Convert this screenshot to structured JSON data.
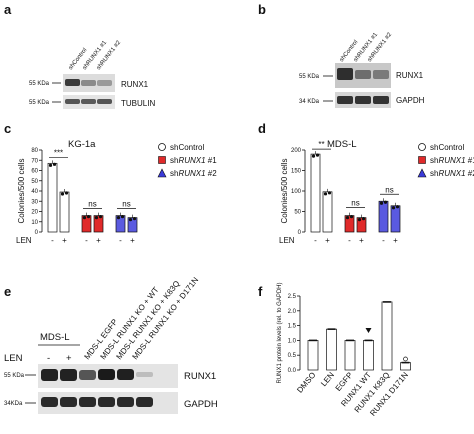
{
  "panels": {
    "a": {
      "letter": "a",
      "lanes": [
        "shControl",
        "shRUNX1 #1",
        "shRUNX1 #2"
      ],
      "markers": [
        "55 KDa",
        "55 KDa"
      ],
      "blots": [
        "RUNX1",
        "TUBULIN"
      ]
    },
    "b": {
      "letter": "b",
      "lanes": [
        "shControl",
        "shRUNX1 #1",
        "shRUNX1 #2"
      ],
      "markers": [
        "55 KDa",
        "34 KDa"
      ],
      "blots": [
        "RUNX1",
        "GAPDH"
      ]
    },
    "e": {
      "letter": "e",
      "group_label": "MDS-L",
      "len_label": "LEN",
      "len_signs": [
        "-",
        "+"
      ],
      "lanes": [
        "MDS-L EGFP",
        "MDS-L RUNX1 KO + WT",
        "MDS-L RUNX1 KO + K83Q",
        "MDS-L RUNX1 KO + D171N"
      ],
      "markers": [
        "55 KDa",
        "34KDa"
      ],
      "blots": [
        "RUNX1",
        "GAPDH"
      ]
    }
  },
  "chart_data": [
    {
      "panel": "c",
      "type": "bar",
      "title": "KG-1a",
      "ylabel": "Colonies/500 cells",
      "xlabel": "LEN",
      "ylim": [
        0,
        80
      ],
      "yticks": [
        "0",
        "10",
        "20",
        "30",
        "40",
        "50",
        "60",
        "70",
        "80"
      ],
      "groups": [
        "shControl",
        "shRUNX1 #1",
        "shRUNX1 #2"
      ],
      "len_signs": [
        "-",
        "+",
        "-",
        "+",
        "-",
        "+"
      ],
      "values": [
        67,
        39,
        16,
        16,
        16,
        14
      ],
      "colors": [
        "#ffffff",
        "#ffffff",
        "#e02a2a",
        "#e02a2a",
        "#5a5ae0",
        "#5a5ae0"
      ],
      "significance": [
        "***",
        "ns",
        "ns"
      ],
      "legend": [
        "shControl",
        "shRUNX1 #1",
        "shRUNX1 #2"
      ]
    },
    {
      "panel": "d",
      "type": "bar",
      "title": "MDS-L",
      "ylabel": "Colonies/500 cells",
      "xlabel": "LEN",
      "ylim": [
        0,
        200
      ],
      "yticks": [
        "0",
        "50",
        "100",
        "150",
        "200"
      ],
      "groups": [
        "shControl",
        "shRUNX1 #1",
        "shRUNX1 #2"
      ],
      "len_signs": [
        "-",
        "+",
        "-",
        "+",
        "-",
        "+"
      ],
      "values": [
        190,
        98,
        40,
        35,
        75,
        64
      ],
      "colors": [
        "#ffffff",
        "#ffffff",
        "#e02a2a",
        "#e02a2a",
        "#5a5ae0",
        "#5a5ae0"
      ],
      "significance": [
        "**",
        "ns",
        "ns"
      ],
      "legend": [
        "shControl",
        "shRUNX1 #1",
        "shRUNX1 #2"
      ]
    },
    {
      "panel": "f",
      "type": "bar",
      "ylabel": "RUNX1 protein levels (rel. to GAPDH)",
      "ylim": [
        0,
        2.5
      ],
      "yticks": [
        "0.0",
        "0.5",
        "1.0",
        "1.5",
        "2.0",
        "2.5"
      ],
      "categories": [
        "DMSO",
        "LEN",
        "EGFP",
        "RUNX1 WT",
        "RUNX1 K83Q",
        "RUNX1 D171N"
      ],
      "values": [
        1.0,
        1.38,
        1.0,
        1.0,
        2.3,
        0.25
      ]
    }
  ]
}
